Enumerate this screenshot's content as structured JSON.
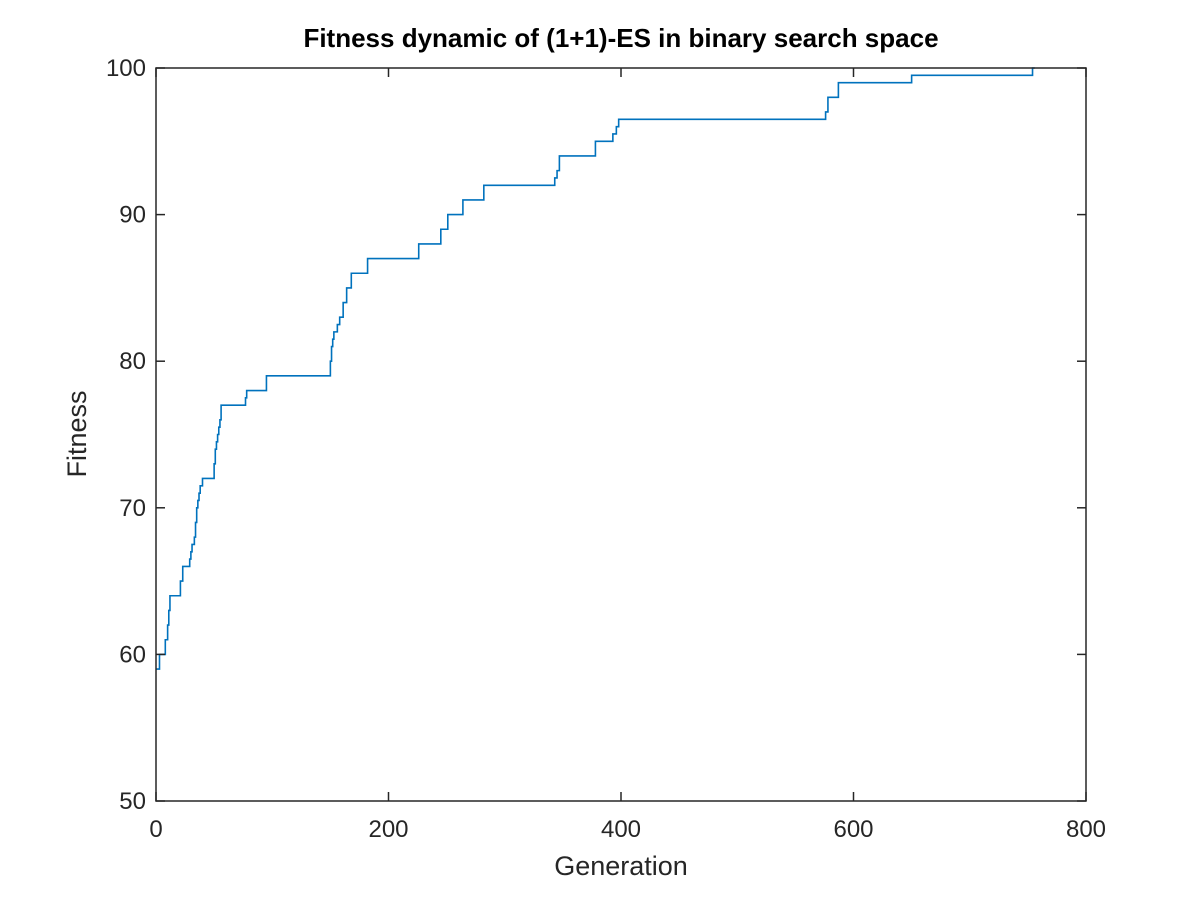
{
  "chart_data": {
    "type": "line",
    "title": "Fitness dynamic of (1+1)-ES in binary search space",
    "xlabel": "Generation",
    "ylabel": "Fitness",
    "xlim": [
      0,
      800
    ],
    "ylim": [
      50,
      100
    ],
    "xticks": [
      0,
      200,
      400,
      600,
      800
    ],
    "yticks": [
      50,
      60,
      70,
      80,
      90,
      100
    ],
    "xtick_labels": [
      "0",
      "200",
      "400",
      "600",
      "800"
    ],
    "ytick_labels": [
      "50",
      "60",
      "70",
      "80",
      "90",
      "100"
    ],
    "grid": false,
    "line_color": "#0072bd",
    "series": [
      {
        "step": true,
        "x": [
          0,
          3,
          8,
          10,
          11,
          12,
          21,
          23,
          29,
          30,
          31,
          33,
          34,
          35,
          36,
          37,
          38,
          40,
          50,
          51,
          52,
          53,
          54,
          55,
          56,
          77,
          78,
          95,
          150,
          151,
          152,
          153,
          156,
          158,
          161,
          164,
          168,
          182,
          226,
          245,
          251,
          264,
          282,
          343,
          345,
          347,
          378,
          393,
          396,
          398,
          576,
          578,
          587,
          650,
          754,
          756
        ],
        "y": [
          59,
          60,
          61,
          62,
          63,
          64,
          65,
          66,
          66.5,
          67,
          67.5,
          68,
          69,
          70,
          70.5,
          71,
          71.5,
          72,
          73,
          74,
          74.5,
          75,
          75.5,
          76,
          77,
          77.5,
          78,
          79,
          80,
          81,
          81.5,
          82,
          82.5,
          83,
          84,
          85,
          86,
          87,
          88,
          89,
          90,
          91,
          92,
          92.5,
          93,
          94,
          95,
          95.5,
          96,
          96.5,
          97,
          98,
          99,
          99.5,
          100,
          100
        ]
      }
    ]
  }
}
